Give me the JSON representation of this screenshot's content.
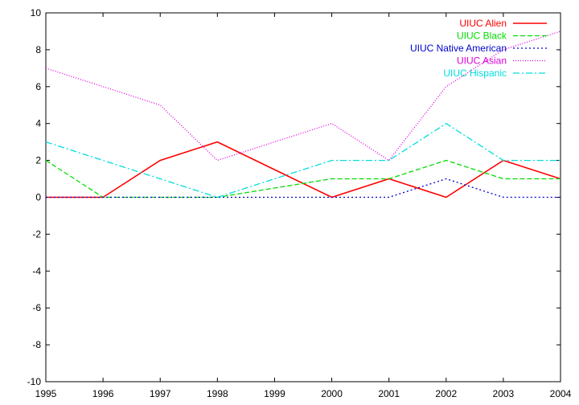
{
  "chart_data": {
    "type": "line",
    "title": "",
    "xlabel": "",
    "ylabel": "",
    "xlim": [
      1995,
      2004
    ],
    "ylim": [
      -10,
      10
    ],
    "x": [
      1995,
      1996,
      1997,
      1998,
      1999,
      2000,
      2001,
      2002,
      2003,
      2004
    ],
    "xticks": [
      "1995",
      "1996",
      "1997",
      "1998",
      "1999",
      "2000",
      "2001",
      "2002",
      "2003",
      "2004"
    ],
    "yticks": [
      "-10",
      "-8",
      "-6",
      "-4",
      "-2",
      "0",
      "2",
      "4",
      "6",
      "8",
      "10"
    ],
    "grid": false,
    "legend_position": "top-right",
    "series": [
      {
        "name": "UIUC Alien",
        "color": "#ff0000",
        "dash": "solid",
        "values": [
          0,
          0,
          2,
          3,
          1.5,
          0,
          1,
          0,
          2,
          1
        ]
      },
      {
        "name": "UIUC Black",
        "color": "#00dd00",
        "dash": "dashed",
        "values": [
          2,
          0,
          0,
          0,
          0.5,
          1,
          1,
          2,
          1,
          1
        ]
      },
      {
        "name": "UIUC Native American",
        "color": "#0000cc",
        "dash": "dotted",
        "values": [
          0,
          0,
          0,
          0,
          0,
          0,
          0,
          1,
          0,
          0
        ]
      },
      {
        "name": "UIUC Asian",
        "color": "#dd00dd",
        "dash": "fine-dotted",
        "values": [
          7,
          6,
          5,
          2,
          3,
          4,
          2,
          6,
          8,
          9
        ]
      },
      {
        "name": "UIUC Hispanic",
        "color": "#00dddd",
        "dash": "dash-dot",
        "values": [
          3,
          2,
          1,
          0,
          1,
          2,
          2,
          4,
          2,
          2
        ]
      }
    ]
  }
}
